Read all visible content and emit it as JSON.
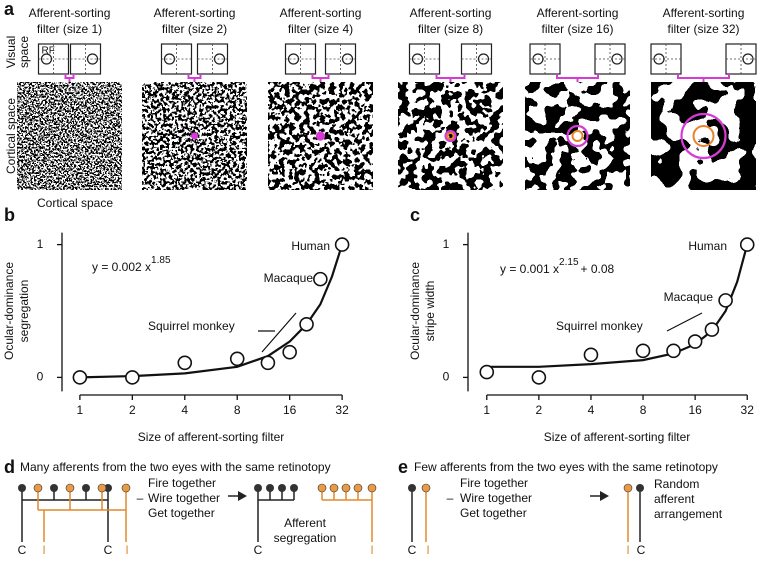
{
  "panel_a": {
    "letter": "a",
    "filters": [
      {
        "title": [
          "Afferent-sorting",
          "filter (size 1)"
        ]
      },
      {
        "title": [
          "Afferent-sorting",
          "filter (size 2)"
        ]
      },
      {
        "title": [
          "Afferent-sorting",
          "filter (size 4)"
        ]
      },
      {
        "title": [
          "Afferent-sorting",
          "filter (size 8)"
        ]
      },
      {
        "title": [
          "Afferent-sorting",
          "filter (size 16)"
        ]
      },
      {
        "title": [
          "Afferent-sorting",
          "filter (size 32)"
        ]
      }
    ],
    "visual_space": [
      "Visual",
      "space"
    ],
    "rf_label": "RF",
    "cortical_space_side": "Cortical space",
    "cortical_space_below": "Cortical space"
  },
  "chart_data": [
    {
      "type": "scatter",
      "letter": "b",
      "equation": {
        "text": "y = 0.002 x",
        "exponent": "1.85"
      },
      "x": [
        1,
        2,
        4,
        8,
        12,
        16,
        20,
        24,
        32
      ],
      "values": [
        0,
        0,
        0.11,
        0.14,
        0.11,
        0.19,
        0.4,
        0.74,
        1
      ],
      "fit_curve": {
        "x": [
          1,
          2,
          4,
          8,
          12,
          16,
          20,
          24,
          28,
          32
        ],
        "values": [
          0,
          0.01,
          0.03,
          0.08,
          0.16,
          0.27,
          0.4,
          0.55,
          0.76,
          1
        ]
      },
      "log_x": true,
      "xlim": [
        0.8,
        40
      ],
      "ylim": [
        -0.11,
        1.11
      ],
      "xticks": [
        1,
        2,
        4,
        8,
        16,
        32
      ],
      "yticks": [
        0,
        1
      ],
      "x_label": "Size of afferent-sorting filter",
      "y_label": [
        "Ocular-dominance",
        "segregation"
      ],
      "annotations": [
        "Human",
        "Macaque",
        "Squirrel monkey"
      ]
    },
    {
      "type": "scatter",
      "letter": "c",
      "equation": {
        "text": "y = 0.001 x",
        "exponent": "2.15",
        "suffix": "+ 0.08"
      },
      "x": [
        1,
        2,
        4,
        8,
        12,
        16,
        20,
        24,
        32
      ],
      "values": [
        0.04,
        0,
        0.17,
        0.2,
        0.2,
        0.27,
        0.36,
        0.58,
        1
      ],
      "fit_curve": {
        "x": [
          1,
          2,
          4,
          8,
          12,
          16,
          20,
          24,
          28,
          32
        ],
        "values": [
          0.08,
          0.08,
          0.1,
          0.13,
          0.18,
          0.25,
          0.35,
          0.5,
          0.72,
          1
        ]
      },
      "log_x": true,
      "xlim": [
        0.8,
        40
      ],
      "ylim": [
        -0.11,
        1.11
      ],
      "xticks": [
        1,
        2,
        4,
        8,
        16,
        32
      ],
      "yticks": [
        0,
        1
      ],
      "x_label": "Size of afferent-sorting filter",
      "y_label": [
        "Ocular-dominance",
        "stripe width"
      ],
      "annotations": [
        "Human",
        "Macaque",
        "Squirrel monkey"
      ]
    }
  ],
  "panel_d": {
    "letter": "d",
    "title": "Many afferents from the two eyes with the same retinotopy",
    "rule": [
      "Fire together",
      "Wire together",
      "Get together"
    ],
    "result": [
      "Afferent",
      "segregation"
    ],
    "labels_before": [
      "C",
      "I",
      "C",
      "I"
    ],
    "labels_after": [
      "C",
      "I"
    ]
  },
  "panel_e": {
    "letter": "e",
    "title": "Few afferents from the two eyes with the same retinotopy",
    "rule": [
      "Fire together",
      "Wire together",
      "Get together"
    ],
    "result": [
      "Random",
      "afferent",
      "arrangement"
    ],
    "labels_before": [
      "C",
      "I"
    ],
    "labels_after": [
      "I",
      "C"
    ]
  }
}
